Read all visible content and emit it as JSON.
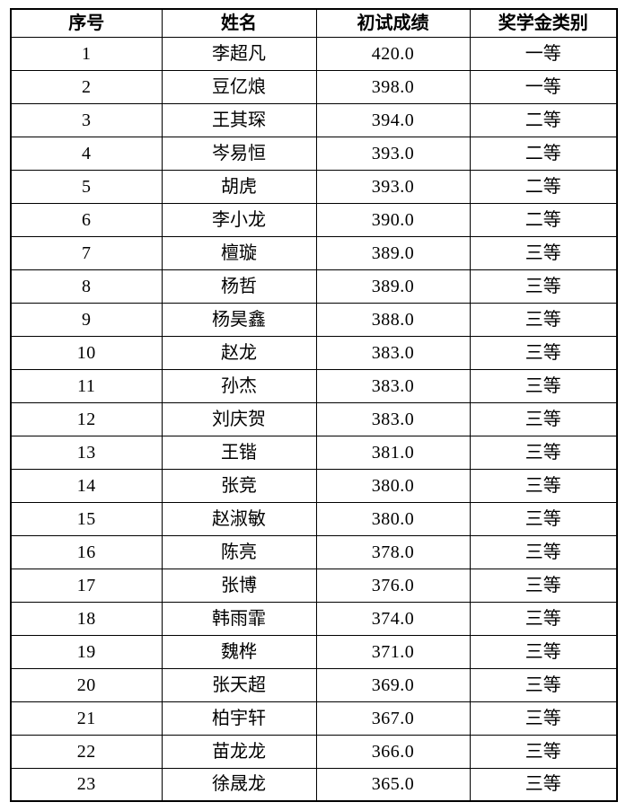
{
  "table": {
    "headers": [
      {
        "key": "index",
        "label": "序号"
      },
      {
        "key": "name",
        "label": "姓名"
      },
      {
        "key": "score",
        "label": "初试成绩"
      },
      {
        "key": "category",
        "label": "奖学金类别"
      }
    ],
    "rows": [
      {
        "index": "1",
        "name": "李超凡",
        "score": "420.0",
        "category": "一等"
      },
      {
        "index": "2",
        "name": "豆亿烺",
        "score": "398.0",
        "category": "一等"
      },
      {
        "index": "3",
        "name": "王其琛",
        "score": "394.0",
        "category": "二等"
      },
      {
        "index": "4",
        "name": "岑易恒",
        "score": "393.0",
        "category": "二等"
      },
      {
        "index": "5",
        "name": "胡虎",
        "score": "393.0",
        "category": "二等"
      },
      {
        "index": "6",
        "name": "李小龙",
        "score": "390.0",
        "category": "二等"
      },
      {
        "index": "7",
        "name": "檀璇",
        "score": "389.0",
        "category": "三等"
      },
      {
        "index": "8",
        "name": "杨哲",
        "score": "389.0",
        "category": "三等"
      },
      {
        "index": "9",
        "name": "杨昊鑫",
        "score": "388.0",
        "category": "三等"
      },
      {
        "index": "10",
        "name": "赵龙",
        "score": "383.0",
        "category": "三等"
      },
      {
        "index": "11",
        "name": "孙杰",
        "score": "383.0",
        "category": "三等"
      },
      {
        "index": "12",
        "name": "刘庆贺",
        "score": "383.0",
        "category": "三等"
      },
      {
        "index": "13",
        "name": "王锴",
        "score": "381.0",
        "category": "三等"
      },
      {
        "index": "14",
        "name": "张竞",
        "score": "380.0",
        "category": "三等"
      },
      {
        "index": "15",
        "name": "赵淑敏",
        "score": "380.0",
        "category": "三等"
      },
      {
        "index": "16",
        "name": "陈亮",
        "score": "378.0",
        "category": "三等"
      },
      {
        "index": "17",
        "name": "张博",
        "score": "376.0",
        "category": "三等"
      },
      {
        "index": "18",
        "name": "韩雨霏",
        "score": "374.0",
        "category": "三等"
      },
      {
        "index": "19",
        "name": "魏桦",
        "score": "371.0",
        "category": "三等"
      },
      {
        "index": "20",
        "name": "张天超",
        "score": "369.0",
        "category": "三等"
      },
      {
        "index": "21",
        "name": "柏宇轩",
        "score": "367.0",
        "category": "三等"
      },
      {
        "index": "22",
        "name": "苗龙龙",
        "score": "366.0",
        "category": "三等"
      },
      {
        "index": "23",
        "name": "徐晟龙",
        "score": "365.0",
        "category": "三等"
      }
    ],
    "colors": {
      "border": "#000000",
      "text": "#000000",
      "background": "#ffffff"
    }
  }
}
